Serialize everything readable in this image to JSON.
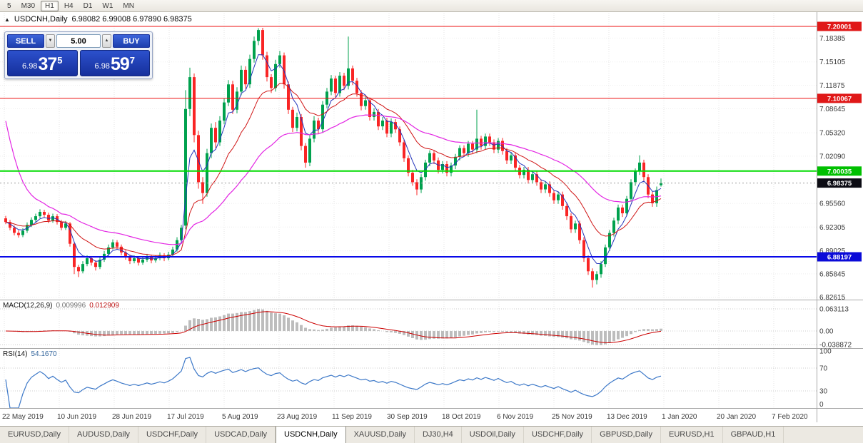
{
  "toolbar": {
    "periods": [
      "5",
      "M30",
      "H1",
      "H4",
      "D1",
      "W1",
      "MN"
    ],
    "active": "H1"
  },
  "chart": {
    "symbol_title": "USDCNH,Daily",
    "ohlc_text": "6.98082 6.99008 6.97890 6.98375"
  },
  "icons": {
    "collapse": "▲",
    "spin_up": "▲",
    "spin_down": "▼"
  },
  "trade_panel": {
    "sell_label": "SELL",
    "buy_label": "BUY",
    "volume": "5.00",
    "sell_price": {
      "prefix": "6.98",
      "big": "37",
      "sup": "5"
    },
    "buy_price": {
      "prefix": "6.98",
      "big": "59",
      "sup": "7"
    }
  },
  "price_axis": {
    "labels": [
      "7.18385",
      "7.15105",
      "7.11875",
      "7.08645",
      "7.05320",
      "7.02090",
      "6.95560",
      "6.92305",
      "6.89025",
      "6.85845",
      "6.82615"
    ]
  },
  "levels": [
    {
      "price": "7.20001",
      "color": "#ee1111",
      "width": 1,
      "badge": "#e01818"
    },
    {
      "price": "7.10067",
      "color": "#ee1111",
      "width": 1,
      "badge": "#e01818"
    },
    {
      "price": "7.00035",
      "color": "#00dc00",
      "width": 2,
      "badge": "#00c000"
    },
    {
      "price": "6.88197",
      "color": "#0808e8",
      "width": 2,
      "badge": "#0a0ad8"
    }
  ],
  "current_price": {
    "value": "6.98375",
    "bg": "#0c0c14"
  },
  "macd": {
    "label": "MACD(12,26,9)",
    "value_main": "0.009996",
    "value_signal": "0.012909",
    "axis": [
      "0.063113",
      "0.00",
      "-0.038872"
    ],
    "params": [
      12,
      26,
      9
    ]
  },
  "rsi": {
    "label": "RSI(14)",
    "value": "54.1670",
    "axis": [
      "100",
      "70",
      "30",
      "0"
    ],
    "levels": [
      70,
      30
    ],
    "period": 14
  },
  "date_axis": [
    "22 May 2019",
    "10 Jun 2019",
    "28 Jun 2019",
    "17 Jul 2019",
    "5 Aug 2019",
    "23 Aug 2019",
    "11 Sep 2019",
    "30 Sep 2019",
    "18 Oct 2019",
    "6 Nov 2019",
    "25 Nov 2019",
    "13 Dec 2019",
    "1 Jan 2020",
    "20 Jan 2020",
    "7 Feb 2020"
  ],
  "tabs": {
    "items": [
      "EURUSD,Daily",
      "AUDUSD,Daily",
      "USDCHF,Daily",
      "USDCAD,Daily",
      "USDCNH,Daily",
      "XAUUSD,Daily",
      "DJ30,H4",
      "USDOil,Daily",
      "USDCHF,Daily",
      "GBPUSD,Daily",
      "EURUSD,H1",
      "GBPAUD,H1"
    ],
    "active_index": 4
  },
  "colors": {
    "up": "#00a14e",
    "down": "#f92525",
    "ma_fast": "#2233bb",
    "ma_mid": "#d01616",
    "ma_slow": "#e325e3",
    "macd_hist": "#bdbdbd",
    "macd_signal": "#cc0000",
    "rsi_line": "#3c78c8"
  },
  "chart_data": {
    "type": "candlestick",
    "symbol": "USDCNH",
    "timeframe": "Daily",
    "candles": [
      [
        6.935,
        6.9385,
        6.927,
        6.93
      ],
      [
        6.93,
        6.933,
        6.9185,
        6.922
      ],
      [
        6.922,
        6.925,
        6.9115,
        6.915
      ],
      [
        6.915,
        6.9185,
        6.9085,
        6.912
      ],
      [
        6.912,
        6.9215,
        6.909,
        6.918
      ],
      [
        6.918,
        6.9295,
        6.915,
        6.926
      ],
      [
        6.926,
        6.9365,
        6.923,
        6.933
      ],
      [
        6.933,
        6.9415,
        6.93,
        6.938
      ],
      [
        6.938,
        6.9475,
        6.935,
        6.944
      ],
      [
        6.944,
        6.947,
        6.9365,
        6.94
      ],
      [
        6.94,
        6.943,
        6.9285,
        6.932
      ],
      [
        6.932,
        6.9415,
        6.929,
        6.938
      ],
      [
        6.938,
        6.941,
        6.9265,
        6.93
      ],
      [
        6.93,
        6.933,
        6.9185,
        6.922
      ],
      [
        6.922,
        6.9315,
        6.919,
        6.928
      ],
      [
        6.928,
        6.93,
        6.896,
        6.9
      ],
      [
        6.9,
        6.902,
        6.858,
        6.868
      ],
      [
        6.868,
        6.871,
        6.854,
        6.862
      ],
      [
        6.862,
        6.876,
        6.859,
        6.872
      ],
      [
        6.872,
        6.884,
        6.869,
        6.88
      ],
      [
        6.88,
        6.883,
        6.87,
        6.874
      ],
      [
        6.874,
        6.877,
        6.863,
        6.868
      ],
      [
        6.868,
        6.882,
        6.865,
        6.878
      ],
      [
        6.878,
        6.89,
        6.875,
        6.886
      ],
      [
        6.886,
        6.899,
        6.883,
        6.895
      ],
      [
        6.895,
        6.906,
        6.892,
        6.902
      ],
      [
        6.902,
        6.905,
        6.892,
        6.896
      ],
      [
        6.896,
        6.899,
        6.884,
        6.888
      ],
      [
        6.888,
        6.891,
        6.878,
        6.882
      ],
      [
        6.882,
        6.885,
        6.872,
        6.876
      ],
      [
        6.876,
        6.884,
        6.873,
        6.88
      ],
      [
        6.88,
        6.883,
        6.87,
        6.874
      ],
      [
        6.874,
        6.882,
        6.871,
        6.878
      ],
      [
        6.878,
        6.886,
        6.875,
        6.882
      ],
      [
        6.882,
        6.885,
        6.873,
        6.877
      ],
      [
        6.877,
        6.884,
        6.874,
        6.88
      ],
      [
        6.88,
        6.888,
        6.877,
        6.884
      ],
      [
        6.884,
        6.887,
        6.876,
        6.88
      ],
      [
        6.88,
        6.889,
        6.877,
        6.885
      ],
      [
        6.885,
        6.896,
        6.882,
        6.892
      ],
      [
        6.892,
        6.909,
        6.889,
        6.905
      ],
      [
        6.905,
        6.926,
        6.902,
        6.922
      ],
      [
        6.925,
        7.112,
        6.92,
        7.086
      ],
      [
        7.086,
        7.143,
        7.076,
        7.13
      ],
      [
        7.13,
        7.135,
        7.04,
        7.05
      ],
      [
        7.05,
        7.056,
        6.976,
        6.985
      ],
      [
        6.985,
        6.992,
        6.955,
        6.97
      ],
      [
        6.97,
        7.031,
        6.965,
        7.025
      ],
      [
        7.025,
        7.066,
        7.018,
        7.06
      ],
      [
        7.06,
        7.068,
        7.032,
        7.04
      ],
      [
        7.04,
        7.076,
        7.035,
        7.07
      ],
      [
        7.07,
        7.101,
        7.065,
        7.095
      ],
      [
        7.095,
        7.126,
        7.09,
        7.12
      ],
      [
        7.12,
        7.125,
        7.079,
        7.085
      ],
      [
        7.085,
        7.116,
        7.08,
        7.11
      ],
      [
        7.11,
        7.146,
        7.105,
        7.14
      ],
      [
        7.14,
        7.145,
        7.114,
        7.12
      ],
      [
        7.12,
        7.161,
        7.115,
        7.155
      ],
      [
        7.155,
        7.186,
        7.15,
        7.18
      ],
      [
        7.18,
        7.1975,
        7.174,
        7.195
      ],
      [
        7.195,
        7.198,
        7.154,
        7.16
      ],
      [
        7.16,
        7.165,
        7.124,
        7.13
      ],
      [
        7.13,
        7.134,
        7.108,
        7.115
      ],
      [
        7.115,
        7.154,
        7.11,
        7.148
      ],
      [
        7.148,
        7.166,
        7.143,
        7.16
      ],
      [
        7.16,
        7.164,
        7.114,
        7.12
      ],
      [
        7.12,
        7.124,
        7.079,
        7.085
      ],
      [
        7.085,
        7.089,
        7.054,
        7.06
      ],
      [
        7.06,
        7.081,
        7.055,
        7.075
      ],
      [
        7.075,
        7.079,
        7.029,
        7.035
      ],
      [
        7.035,
        7.039,
        7.005,
        7.012
      ],
      [
        7.012,
        7.05,
        7.007,
        7.045
      ],
      [
        7.045,
        7.076,
        7.04,
        7.07
      ],
      [
        7.07,
        7.074,
        7.052,
        7.058
      ],
      [
        7.058,
        7.097,
        7.053,
        7.092
      ],
      [
        7.092,
        7.115,
        7.087,
        7.11
      ],
      [
        7.11,
        7.133,
        7.105,
        7.128
      ],
      [
        7.128,
        7.132,
        7.102,
        7.108
      ],
      [
        7.108,
        7.137,
        7.103,
        7.132
      ],
      [
        7.132,
        7.136,
        7.112,
        7.118
      ],
      [
        7.118,
        7.186,
        7.113,
        7.142
      ],
      [
        7.142,
        7.146,
        7.119,
        7.125
      ],
      [
        7.125,
        7.129,
        7.103,
        7.108
      ],
      [
        7.108,
        7.112,
        7.084,
        7.09
      ],
      [
        7.09,
        7.103,
        7.085,
        7.098
      ],
      [
        7.098,
        7.102,
        7.07,
        7.075
      ],
      [
        7.075,
        7.087,
        7.07,
        7.082
      ],
      [
        7.082,
        7.086,
        7.057,
        7.062
      ],
      [
        7.062,
        7.075,
        7.057,
        7.07
      ],
      [
        7.07,
        7.074,
        7.047,
        7.052
      ],
      [
        7.052,
        7.073,
        7.047,
        7.068
      ],
      [
        7.068,
        7.072,
        7.053,
        7.058
      ],
      [
        7.058,
        7.062,
        7.035,
        7.04
      ],
      [
        7.04,
        7.044,
        7.013,
        7.018
      ],
      [
        7.018,
        7.022,
        6.993,
        6.998
      ],
      [
        6.998,
        7.002,
        6.98,
        6.985
      ],
      [
        6.985,
        6.989,
        6.967,
        6.975
      ],
      [
        6.975,
        6.996,
        6.97,
        6.992
      ],
      [
        6.992,
        7.016,
        6.987,
        7.012
      ],
      [
        7.012,
        7.029,
        7.007,
        7.025
      ],
      [
        7.025,
        7.029,
        7.01,
        7.015
      ],
      [
        7.015,
        7.019,
        6.997,
        7.002
      ],
      [
        7.002,
        7.014,
        6.997,
        7.01
      ],
      [
        7.01,
        7.014,
        6.993,
        6.998
      ],
      [
        6.998,
        7.012,
        6.993,
        7.008
      ],
      [
        7.008,
        7.024,
        7.003,
        7.02
      ],
      [
        7.02,
        7.036,
        7.015,
        7.032
      ],
      [
        7.032,
        7.036,
        7.02,
        7.025
      ],
      [
        7.025,
        7.042,
        7.02,
        7.038
      ],
      [
        7.038,
        7.042,
        7.025,
        7.03
      ],
      [
        7.03,
        7.085,
        7.025,
        7.045
      ],
      [
        7.045,
        7.049,
        7.03,
        7.035
      ],
      [
        7.035,
        7.052,
        7.03,
        7.048
      ],
      [
        7.048,
        7.052,
        7.035,
        7.04
      ],
      [
        7.04,
        7.044,
        7.025,
        7.03
      ],
      [
        7.03,
        7.046,
        7.025,
        7.042
      ],
      [
        7.042,
        7.046,
        7.023,
        7.028
      ],
      [
        7.028,
        7.032,
        7.01,
        7.015
      ],
      [
        7.015,
        7.026,
        7.01,
        7.022
      ],
      [
        7.022,
        7.026,
        7.0,
        7.005
      ],
      [
        7.005,
        7.009,
        6.99,
        6.995
      ],
      [
        6.995,
        7.006,
        6.99,
        7.002
      ],
      [
        7.002,
        7.006,
        6.983,
        6.988
      ],
      [
        6.988,
        7.0,
        6.983,
        6.996
      ],
      [
        6.996,
        7.0,
        6.98,
        6.985
      ],
      [
        6.985,
        6.989,
        6.97,
        6.975
      ],
      [
        6.975,
        6.986,
        6.97,
        6.982
      ],
      [
        6.982,
        6.986,
        6.965,
        6.97
      ],
      [
        6.97,
        6.974,
        6.955,
        6.96
      ],
      [
        6.96,
        6.972,
        6.955,
        6.968
      ],
      [
        6.968,
        6.972,
        6.947,
        6.952
      ],
      [
        6.952,
        6.956,
        6.933,
        6.938
      ],
      [
        6.938,
        6.942,
        6.915,
        6.92
      ],
      [
        6.92,
        6.932,
        6.915,
        6.928
      ],
      [
        6.928,
        6.932,
        6.9,
        6.905
      ],
      [
        6.905,
        6.909,
        6.875,
        6.88
      ],
      [
        6.88,
        6.884,
        6.857,
        6.862
      ],
      [
        6.862,
        6.866,
        6.8395,
        6.85
      ],
      [
        6.85,
        6.862,
        6.844,
        6.858
      ],
      [
        6.858,
        6.876,
        6.853,
        6.872
      ],
      [
        6.872,
        6.899,
        6.868,
        6.895
      ],
      [
        6.895,
        6.919,
        6.89,
        6.915
      ],
      [
        6.915,
        6.936,
        6.91,
        6.932
      ],
      [
        6.932,
        6.954,
        6.927,
        6.95
      ],
      [
        6.95,
        6.954,
        6.937,
        6.942
      ],
      [
        6.942,
        6.966,
        6.938,
        6.962
      ],
      [
        6.962,
        6.989,
        6.958,
        6.985
      ],
      [
        6.985,
        7.004,
        6.98,
        7.0
      ],
      [
        7.0,
        7.022,
        6.995,
        7.012
      ],
      [
        7.012,
        7.016,
        6.987,
        6.992
      ],
      [
        6.992,
        6.996,
        6.963,
        6.968
      ],
      [
        6.968,
        6.972,
        6.951,
        6.956
      ],
      [
        6.956,
        6.979,
        6.951,
        6.974
      ],
      [
        6.98082,
        6.99008,
        6.9789,
        6.98375
      ]
    ]
  }
}
